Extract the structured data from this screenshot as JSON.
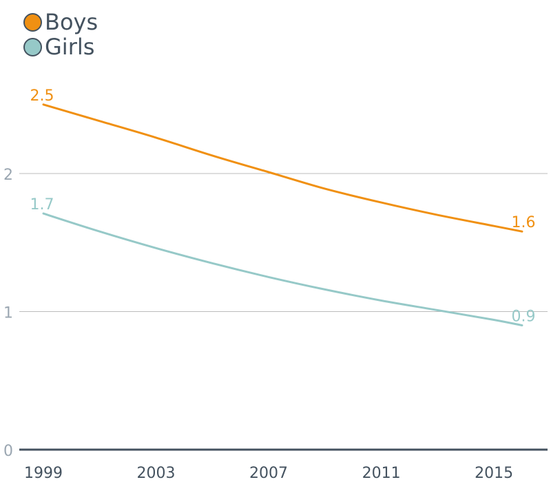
{
  "chart_data": {
    "type": "line",
    "x": [
      1999,
      2001,
      2003,
      2005,
      2007,
      2009,
      2011,
      2013,
      2015,
      2016
    ],
    "series": [
      {
        "name": "Boys",
        "color": "#f09012",
        "values": [
          2.5,
          2.38,
          2.26,
          2.13,
          2.01,
          1.89,
          1.79,
          1.7,
          1.62,
          1.58
        ],
        "start_label": "2.5",
        "end_label": "1.6"
      },
      {
        "name": "Girls",
        "color": "#96c9c8",
        "values": [
          1.71,
          1.58,
          1.46,
          1.35,
          1.25,
          1.16,
          1.08,
          1.01,
          0.94,
          0.9
        ],
        "start_label": "1.7",
        "end_label": "0.9"
      }
    ],
    "x_ticks": [
      "1999",
      "2003",
      "2007",
      "2011",
      "2015"
    ],
    "y_ticks": [
      "0",
      "1",
      "2"
    ],
    "ylim": [
      0,
      2.5
    ],
    "xlim": [
      1999,
      2016
    ],
    "grid": true,
    "legend_position": "top-left"
  },
  "colors": {
    "axis": "#44525f",
    "grid": "#bbbbbb",
    "y_tick_text": "#9aa6b1",
    "x_tick_text": "#44525f"
  }
}
